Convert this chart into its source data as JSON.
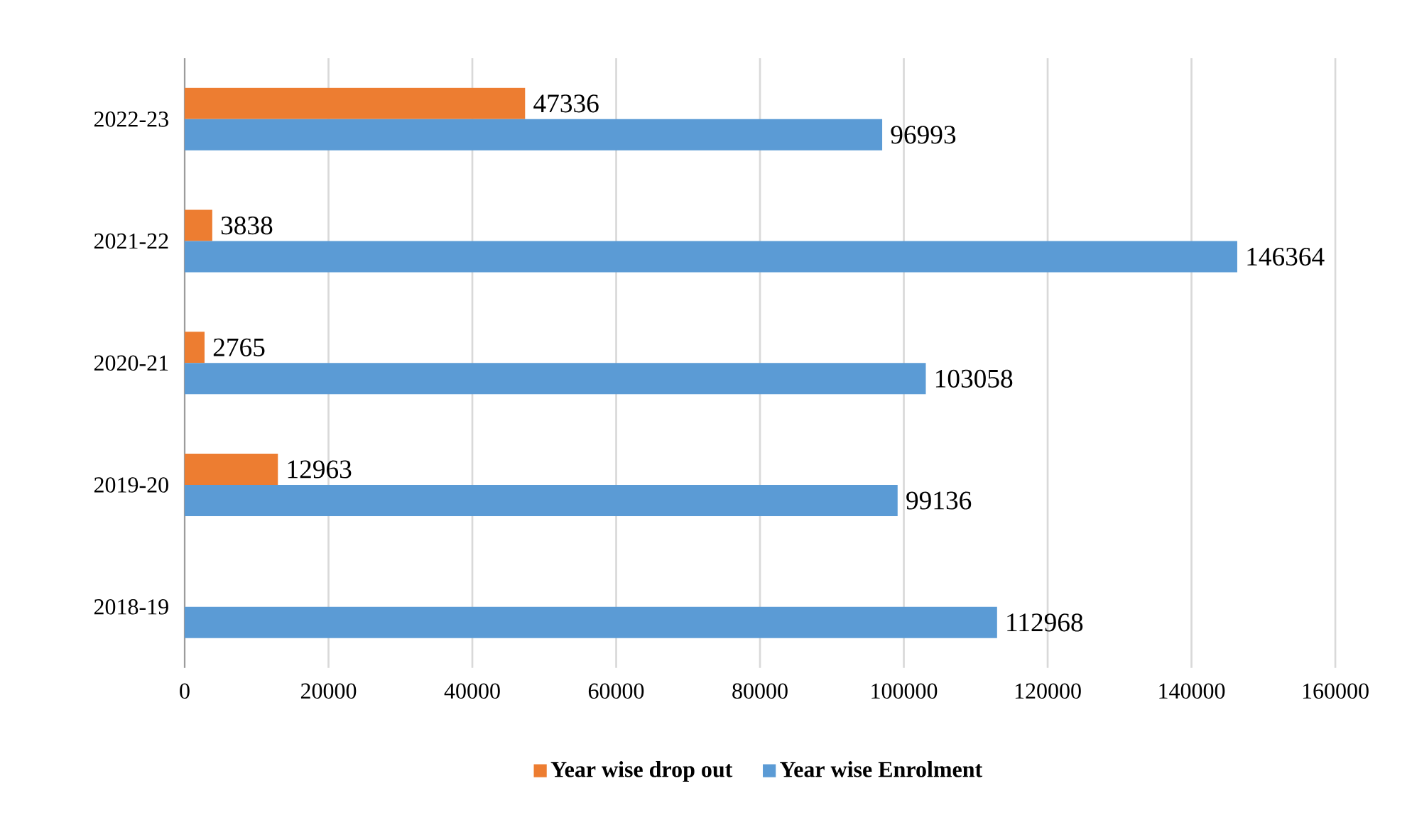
{
  "chart_data": {
    "type": "bar",
    "orientation": "horizontal",
    "categories": [
      "2022-23",
      "2021-22",
      "2020-21",
      "2019-20",
      "2018-19"
    ],
    "series": [
      {
        "name": "Year wise drop out",
        "color": "#ed7d31",
        "values": [
          47336,
          3838,
          2765,
          12963,
          null
        ]
      },
      {
        "name": "Year wise Enrolment",
        "color": "#5b9bd5",
        "values": [
          96993,
          146364,
          103058,
          99136,
          112968
        ]
      }
    ],
    "xlim": [
      0,
      160000
    ],
    "xticks": [
      0,
      20000,
      40000,
      60000,
      80000,
      100000,
      120000,
      140000,
      160000
    ],
    "grid": "x",
    "legend": "bottom",
    "data_labels": true
  }
}
